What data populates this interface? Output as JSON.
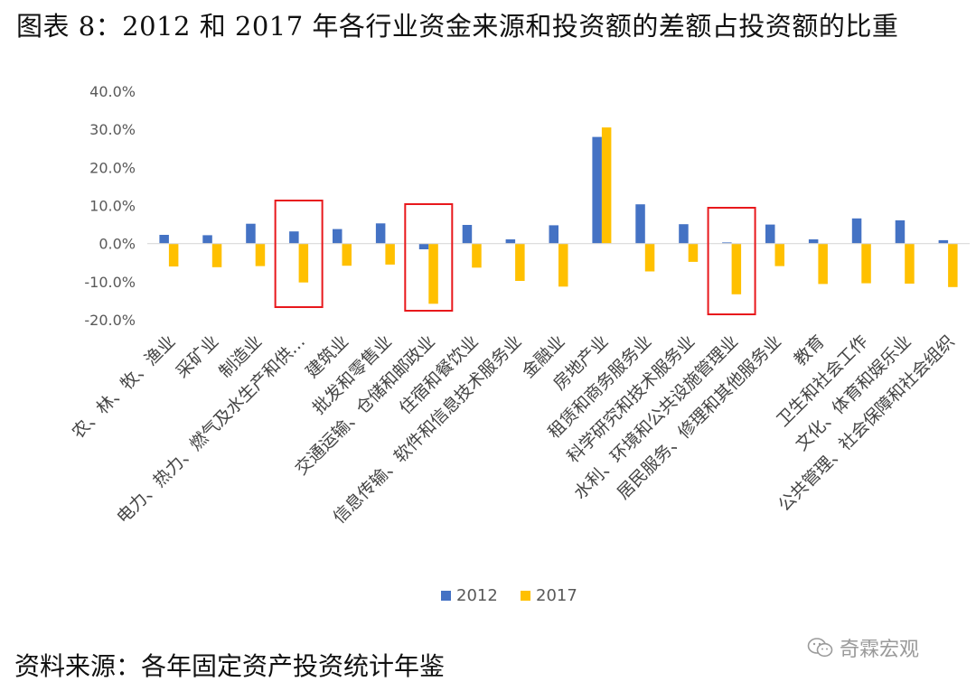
{
  "title": "图表 8：2012 和 2017 年各行业资金来源和投资额的差额占投资额的比重",
  "source": "资料来源：各年固定资产投资统计年鉴",
  "watermark": {
    "text": "奇霖宏观",
    "icon": "wechat-icon"
  },
  "colors": {
    "s2012": "#4472C4",
    "s2017": "#FFC000",
    "highlight": "#E8181C",
    "axis": "#D9D9D9"
  },
  "chart_data": {
    "type": "bar",
    "yunit": "%",
    "ylim": [
      -20,
      40
    ],
    "yticks": [
      "40.0%",
      "30.0%",
      "20.0%",
      "10.0%",
      "0.0%",
      "-10.0%",
      "-20.0%"
    ],
    "grid": false,
    "legend_position": "bottom",
    "categories": [
      "农、林、牧、渔业",
      "采矿业",
      "制造业",
      "电力、热力、燃气及水生产和供…",
      "建筑业",
      "批发和零售业",
      "交通运输、仓储和邮政业",
      "住宿和餐饮业",
      "信息传输、软件和信息技术服务业",
      "金融业",
      "房地产业",
      "租赁和商务服务业",
      "科学研究和技术服务业",
      "水利、环境和公共设施管理业",
      "居民服务、修理和其他服务业",
      "教育",
      "卫生和社会工作",
      "文化、体育和娱乐业",
      "公共管理、社会保障和社会组织"
    ],
    "series": [
      {
        "name": "2012",
        "values": [
          2.3,
          2.2,
          5.2,
          3.2,
          3.8,
          5.3,
          -1.5,
          4.9,
          1.1,
          4.8,
          28.0,
          10.3,
          5.1,
          0.3,
          5.0,
          1.1,
          6.6,
          6.1,
          0.9
        ]
      },
      {
        "name": "2017",
        "values": [
          -6.0,
          -6.2,
          -5.9,
          -10.2,
          -5.8,
          -5.5,
          -15.8,
          -6.3,
          -9.8,
          -11.3,
          30.5,
          -7.3,
          -4.8,
          -13.3,
          -5.9,
          -10.6,
          -10.4,
          -10.5,
          -11.4
        ]
      }
    ],
    "highlighted_categories": [
      3,
      6,
      13
    ]
  }
}
